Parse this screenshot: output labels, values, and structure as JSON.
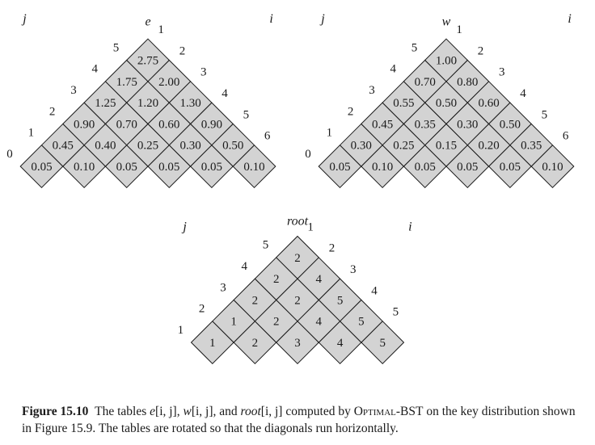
{
  "tables": [
    {
      "title": "e",
      "j_label": "j",
      "i_label": "i",
      "rows": [
        [
          "0.05",
          "0.10",
          "0.05",
          "0.05",
          "0.05",
          "0.10"
        ],
        [
          "0.45",
          "0.40",
          "0.25",
          "0.30",
          "0.50"
        ],
        [
          "0.90",
          "0.70",
          "0.60",
          "0.90"
        ],
        [
          "1.25",
          "1.20",
          "1.30"
        ],
        [
          "1.75",
          "2.00"
        ],
        [
          "2.75"
        ]
      ],
      "j_indices": [
        "0",
        "1",
        "2",
        "3",
        "4",
        "5"
      ],
      "i_indices": [
        "1",
        "2",
        "3",
        "4",
        "5",
        "6"
      ]
    },
    {
      "title": "w",
      "j_label": "j",
      "i_label": "i",
      "rows": [
        [
          "0.05",
          "0.10",
          "0.05",
          "0.05",
          "0.05",
          "0.10"
        ],
        [
          "0.30",
          "0.25",
          "0.15",
          "0.20",
          "0.35"
        ],
        [
          "0.45",
          "0.35",
          "0.30",
          "0.50"
        ],
        [
          "0.55",
          "0.50",
          "0.60"
        ],
        [
          "0.70",
          "0.80"
        ],
        [
          "1.00"
        ]
      ],
      "j_indices": [
        "0",
        "1",
        "2",
        "3",
        "4",
        "5"
      ],
      "i_indices": [
        "1",
        "2",
        "3",
        "4",
        "5",
        "6"
      ]
    },
    {
      "title": "root",
      "j_label": "j",
      "i_label": "i",
      "rows": [
        [
          "1",
          "2",
          "3",
          "4",
          "5"
        ],
        [
          "1",
          "2",
          "4",
          "5"
        ],
        [
          "2",
          "2",
          "5"
        ],
        [
          "2",
          "4"
        ],
        [
          "2"
        ]
      ],
      "j_indices": [
        "1",
        "2",
        "3",
        "4",
        "5"
      ],
      "i_indices": [
        "1",
        "2",
        "3",
        "4",
        "5"
      ]
    }
  ],
  "caption": {
    "label": "Figure 15.10",
    "before_e": "The tables ",
    "e": "e",
    "ij_1": "[i, j]",
    "sep1": ", ",
    "w": "w",
    "ij_2": "[i, j]",
    "sep2": ", and ",
    "root": "root",
    "ij_3": "[i, j]",
    "computed_by": " computed by ",
    "algo": "Optimal-BST",
    "rest": " on the key distribution shown in Figure 15.9. The tables are rotated so that the diagonals run horizontally."
  }
}
